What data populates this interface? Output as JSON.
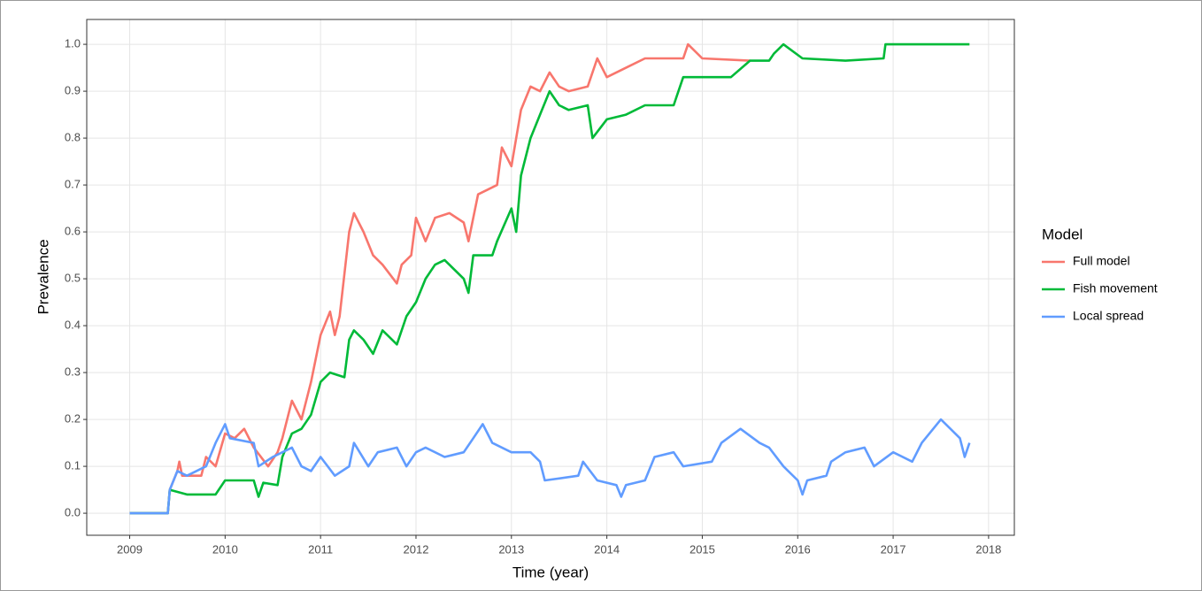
{
  "chart_data": {
    "type": "line",
    "x_label": "Time (year)",
    "y_label": "Prevalence",
    "legend_title": "Model",
    "legend": "right",
    "grid": true,
    "xlim": [
      2008.55,
      2018.27
    ],
    "ylim": [
      -0.047,
      1.053
    ],
    "xticks": [
      2009,
      2010,
      2011,
      2012,
      2013,
      2014,
      2015,
      2016,
      2017,
      2018
    ],
    "yticks": [
      {
        "value": 0,
        "label": "0.0"
      },
      0.1,
      0.2,
      0.3,
      0.4,
      0.5,
      0.6,
      0.7,
      0.8,
      0.9,
      {
        "value": 1,
        "label": "1.0"
      }
    ],
    "series": [
      {
        "name": "Full model",
        "color": "#F8766D",
        "x": [
          2009.0,
          2009.4,
          2009.42,
          2009.5,
          2009.52,
          2009.55,
          2009.75,
          2009.8,
          2009.9,
          2010.0,
          2010.1,
          2010.2,
          2010.3,
          2010.45,
          2010.55,
          2010.6,
          2010.7,
          2010.8,
          2010.9,
          2011.0,
          2011.1,
          2011.15,
          2011.2,
          2011.3,
          2011.35,
          2011.45,
          2011.55,
          2011.65,
          2011.8,
          2011.85,
          2011.95,
          2012.0,
          2012.1,
          2012.2,
          2012.35,
          2012.5,
          2012.55,
          2012.65,
          2012.75,
          2012.85,
          2012.9,
          2013.0,
          2013.1,
          2013.2,
          2013.3,
          2013.4,
          2013.5,
          2013.6,
          2013.8,
          2013.9,
          2014.0,
          2014.2,
          2014.4,
          2014.8,
          2014.85,
          2015.0,
          2015.5
        ],
        "values": [
          0,
          0,
          0.05,
          0.09,
          0.11,
          0.08,
          0.08,
          0.12,
          0.1,
          0.17,
          0.16,
          0.18,
          0.14,
          0.1,
          0.13,
          0.16,
          0.24,
          0.2,
          0.28,
          0.38,
          0.43,
          0.38,
          0.42,
          0.6,
          0.64,
          0.6,
          0.55,
          0.53,
          0.49,
          0.53,
          0.55,
          0.63,
          0.58,
          0.63,
          0.64,
          0.62,
          0.58,
          0.68,
          0.69,
          0.7,
          0.78,
          0.74,
          0.86,
          0.91,
          0.9,
          0.94,
          0.91,
          0.9,
          0.91,
          0.97,
          0.93,
          0.95,
          0.97,
          0.97,
          1.0,
          0.97,
          0.965
        ]
      },
      {
        "name": "Fish movement",
        "color": "#00BA38",
        "x": [
          2009.0,
          2009.4,
          2009.42,
          2009.6,
          2009.9,
          2010.0,
          2010.3,
          2010.35,
          2010.4,
          2010.55,
          2010.6,
          2010.7,
          2010.8,
          2010.9,
          2011.0,
          2011.1,
          2011.25,
          2011.3,
          2011.35,
          2011.45,
          2011.55,
          2011.65,
          2011.8,
          2011.9,
          2012.0,
          2012.1,
          2012.2,
          2012.3,
          2012.5,
          2012.55,
          2012.6,
          2012.8,
          2012.85,
          2013.0,
          2013.05,
          2013.1,
          2013.2,
          2013.3,
          2013.4,
          2013.5,
          2013.6,
          2013.8,
          2013.85,
          2014.0,
          2014.2,
          2014.4,
          2014.7,
          2014.8,
          2015.0,
          2015.3,
          2015.5,
          2015.7,
          2015.75,
          2015.85,
          2016.05,
          2016.5,
          2016.9,
          2016.92,
          2017.8
        ],
        "values": [
          0,
          0,
          0.05,
          0.04,
          0.04,
          0.07,
          0.07,
          0.035,
          0.065,
          0.06,
          0.12,
          0.17,
          0.18,
          0.21,
          0.28,
          0.3,
          0.29,
          0.37,
          0.39,
          0.37,
          0.34,
          0.39,
          0.36,
          0.42,
          0.45,
          0.5,
          0.53,
          0.54,
          0.5,
          0.47,
          0.55,
          0.55,
          0.58,
          0.65,
          0.6,
          0.72,
          0.8,
          0.85,
          0.9,
          0.87,
          0.86,
          0.87,
          0.8,
          0.84,
          0.85,
          0.87,
          0.87,
          0.93,
          0.93,
          0.93,
          0.965,
          0.965,
          0.98,
          1.0,
          0.97,
          0.965,
          0.97,
          1.0,
          1.0
        ]
      },
      {
        "name": "Local spread",
        "color": "#619CFF",
        "x": [
          2009.0,
          2009.4,
          2009.42,
          2009.5,
          2009.6,
          2009.8,
          2009.9,
          2010.0,
          2010.05,
          2010.3,
          2010.35,
          2010.5,
          2010.6,
          2010.7,
          2010.8,
          2010.9,
          2011.0,
          2011.15,
          2011.3,
          2011.35,
          2011.5,
          2011.6,
          2011.8,
          2011.9,
          2012.0,
          2012.1,
          2012.3,
          2012.5,
          2012.6,
          2012.7,
          2012.8,
          2013.0,
          2013.2,
          2013.3,
          2013.35,
          2013.7,
          2013.75,
          2013.9,
          2014.1,
          2014.15,
          2014.2,
          2014.4,
          2014.5,
          2014.7,
          2014.8,
          2015.1,
          2015.2,
          2015.4,
          2015.6,
          2015.7,
          2015.85,
          2016.0,
          2016.05,
          2016.1,
          2016.3,
          2016.35,
          2016.5,
          2016.7,
          2016.8,
          2017.0,
          2017.2,
          2017.3,
          2017.5,
          2017.6,
          2017.7,
          2017.75,
          2017.8
        ],
        "values": [
          0,
          0,
          0.05,
          0.09,
          0.08,
          0.1,
          0.15,
          0.19,
          0.16,
          0.15,
          0.1,
          0.12,
          0.13,
          0.14,
          0.1,
          0.09,
          0.12,
          0.08,
          0.1,
          0.15,
          0.1,
          0.13,
          0.14,
          0.1,
          0.13,
          0.14,
          0.12,
          0.13,
          0.16,
          0.19,
          0.15,
          0.13,
          0.13,
          0.11,
          0.07,
          0.08,
          0.11,
          0.07,
          0.06,
          0.035,
          0.06,
          0.07,
          0.12,
          0.13,
          0.1,
          0.11,
          0.15,
          0.18,
          0.15,
          0.14,
          0.1,
          0.07,
          0.04,
          0.07,
          0.08,
          0.11,
          0.13,
          0.14,
          0.1,
          0.13,
          0.11,
          0.15,
          0.2,
          0.18,
          0.16,
          0.12,
          0.15
        ]
      }
    ]
  }
}
